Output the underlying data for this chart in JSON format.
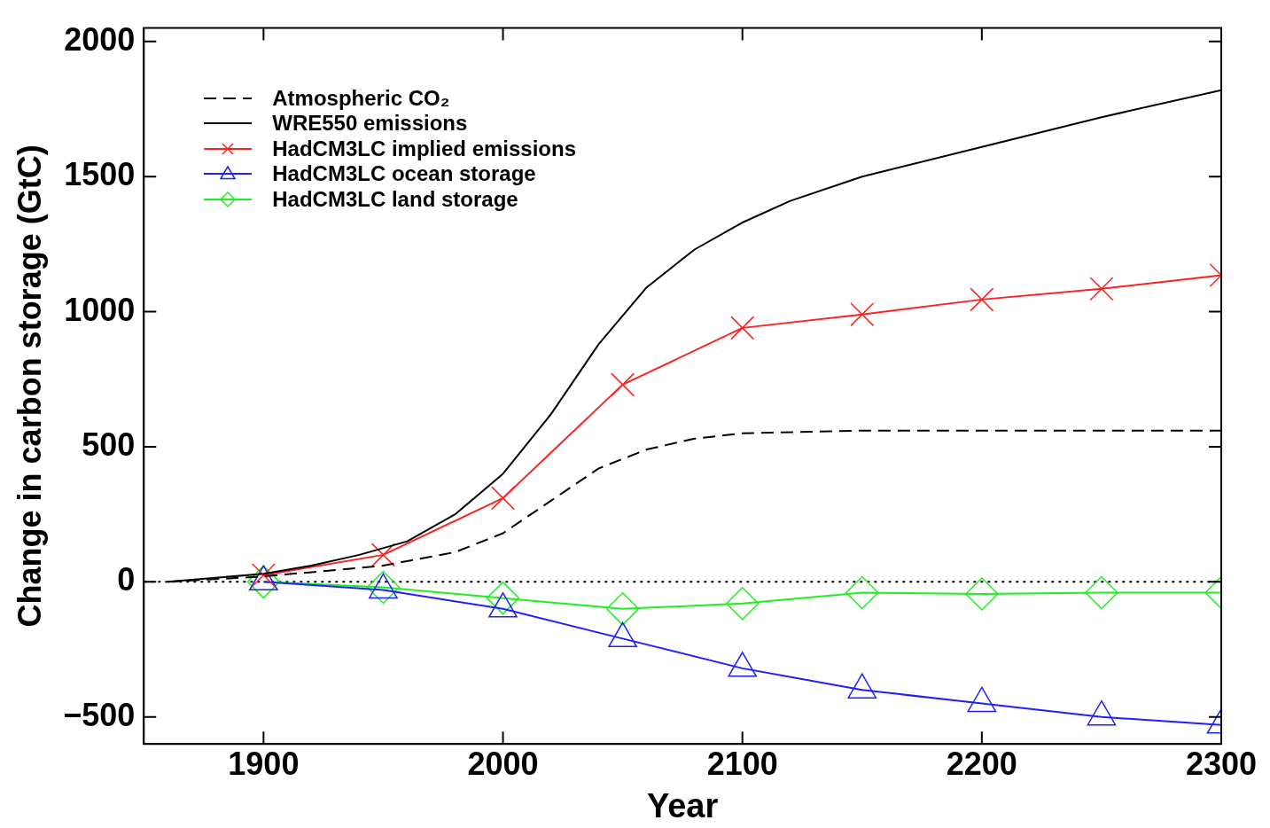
{
  "chart_data": {
    "type": "line",
    "xlabel": "Year",
    "ylabel": "Change in carbon storage (GtC)",
    "xlim": [
      1850,
      2300
    ],
    "xticks": [
      1900,
      2000,
      2100,
      2200,
      2300
    ],
    "ylim": [
      -600,
      2050
    ],
    "yticks": [
      -500,
      0,
      500,
      1000,
      1500,
      2000
    ],
    "grid": false,
    "legend": "top left",
    "ref_lines": [
      {
        "axis": "y",
        "value": 0,
        "color": "#000000",
        "line_style": "dotted"
      }
    ],
    "series": [
      {
        "name": "Atmospheric CO₂",
        "color": "#000000",
        "line_style": "dashed",
        "marker": "none",
        "x": [
          1860,
          1900,
          1950,
          1980,
          2000,
          2020,
          2040,
          2060,
          2080,
          2100,
          2150,
          2300
        ],
        "values": [
          0,
          20,
          60,
          110,
          180,
          300,
          420,
          490,
          530,
          550,
          560,
          560
        ]
      },
      {
        "name": "WRE550 emissions",
        "color": "#000000",
        "line_style": "solid",
        "marker": "none",
        "x": [
          1860,
          1880,
          1900,
          1920,
          1940,
          1960,
          1980,
          2000,
          2020,
          2040,
          2060,
          2080,
          2100,
          2120,
          2150,
          2200,
          2250,
          2300
        ],
        "values": [
          0,
          15,
          30,
          60,
          100,
          150,
          250,
          400,
          620,
          880,
          1090,
          1230,
          1330,
          1410,
          1500,
          1610,
          1720,
          1820
        ]
      },
      {
        "name": "HadCM3LC implied emissions",
        "color": "#ff2020",
        "line_style": "solid",
        "marker": "cross",
        "x": [
          1900,
          1950,
          2000,
          2050,
          2100,
          2150,
          2200,
          2250,
          2300
        ],
        "values": [
          25,
          100,
          310,
          730,
          940,
          990,
          1045,
          1085,
          1135
        ]
      },
      {
        "name": "HadCM3LC ocean storage",
        "color": "#2020ff",
        "line_style": "solid",
        "marker": "triangle",
        "x": [
          1900,
          1950,
          2000,
          2050,
          2100,
          2150,
          2200,
          2250,
          2300
        ],
        "values": [
          0,
          -30,
          -100,
          -210,
          -320,
          -400,
          -450,
          -500,
          -530
        ]
      },
      {
        "name": "HadCM3LC land storage",
        "color": "#20ee20",
        "line_style": "solid",
        "marker": "diamond",
        "x": [
          1900,
          1950,
          2000,
          2050,
          2100,
          2150,
          2200,
          2250,
          2300
        ],
        "values": [
          0,
          -20,
          -60,
          -100,
          -80,
          -40,
          -45,
          -40,
          -40
        ]
      }
    ]
  }
}
